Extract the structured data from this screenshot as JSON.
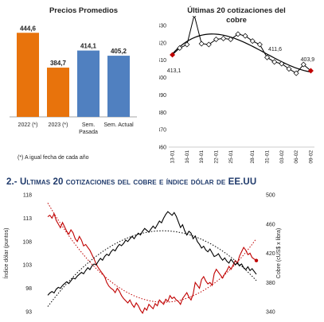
{
  "bar_title": "Precios Promedios",
  "bar_note": "(*) A igual fecha de cada año",
  "line_title": "Últimas 20 cotizaciones del cobre",
  "section_title": "2.- Ultimas 20 cotizaciones del cobre e índice dólar de EE.UU",
  "colors": {
    "orange": "#e8730c",
    "blue": "#5080c0",
    "red": "#c00000",
    "black": "#000000",
    "title_blue": "#1f3a6b"
  },
  "chart_data": [
    {
      "type": "bar",
      "title": "Precios Promedios",
      "categories": [
        "2022 (*)",
        "2023 (*)",
        "Sem. Pasada",
        "Sem. Actual"
      ],
      "values": [
        444.6,
        384.7,
        414.1,
        405.2
      ],
      "value_labels": [
        "444,6",
        "384,7",
        "414,1",
        "405,2"
      ],
      "colors": [
        "#e8730c",
        "#e8730c",
        "#5080c0",
        "#5080c0"
      ],
      "ylim": [
        300,
        460
      ]
    },
    {
      "type": "line",
      "title": "Últimas 20 cotizaciones del cobre",
      "x": [
        "13-01",
        "16-01",
        "17-01",
        "18-01",
        "19-01",
        "20-01",
        "23-01",
        "24-01",
        "25-01",
        "26-01",
        "27-01",
        "30-01",
        "31-01",
        "01-02",
        "02-02",
        "03-02",
        "06-02",
        "07-02",
        "08-02",
        "09-02"
      ],
      "x_tick_labels": [
        "13-01",
        "16-01",
        "19-01",
        "22-01",
        "25-01",
        "28-01",
        "31-01",
        "03-02",
        "06-02",
        "09-02"
      ],
      "values": [
        413.1,
        417.0,
        419.0,
        436.0,
        419.5,
        419.0,
        422.0,
        422.5,
        422.0,
        425.0,
        424.0,
        421.0,
        419.0,
        411.6,
        409.0,
        408.0,
        405.0,
        402.5,
        407.5,
        403.9
      ],
      "ylim": [
        360,
        430
      ],
      "yticks": [
        360,
        370,
        380,
        390,
        400,
        410,
        420,
        430
      ],
      "annotations": [
        {
          "label": "413,1",
          "index": 0
        },
        {
          "label": "411,6",
          "index": 13
        },
        {
          "label": "403,9",
          "index": 19
        }
      ],
      "trendline": "polynomial",
      "series_color": "#000000",
      "highlight_color": "#c00000"
    },
    {
      "type": "line",
      "title": "2.- Ultimas 20 cotizaciones del cobre e índice dólar de EE.UU",
      "y_left_label": "Índice dólar (puntos)",
      "y_right_label": "Cobre (cUS$ x libra)",
      "y_left_lim": [
        93,
        118
      ],
      "y_left_ticks": [
        93,
        98,
        103,
        108,
        113,
        118
      ],
      "y_right_lim": [
        340,
        500
      ],
      "y_right_ticks": [
        340,
        380,
        420,
        460,
        500
      ],
      "series": [
        {
          "name": "Cobre",
          "axis": "right",
          "color": "#c00000",
          "values": [
            470,
            472,
            468,
            474,
            465,
            460,
            455,
            462,
            456,
            450,
            446,
            452,
            448,
            440,
            436,
            443,
            438,
            430,
            432,
            428,
            424,
            418,
            412,
            405,
            400,
            396,
            392,
            388,
            380,
            375,
            372,
            370,
            366,
            372,
            368,
            362,
            358,
            355,
            352,
            356,
            350,
            346,
            352,
            348,
            342,
            338,
            345,
            342,
            350,
            347,
            344,
            351,
            348,
            356,
            353,
            350,
            357,
            354,
            362,
            358,
            360,
            356,
            354,
            350,
            358,
            362,
            366,
            360,
            356,
            364,
            380,
            376,
            372,
            384,
            388,
            382,
            378,
            380,
            376,
            392,
            398,
            394,
            390,
            386,
            392,
            396,
            402,
            398,
            404,
            410,
            406,
            416,
            422,
            428,
            424,
            418,
            420,
            414,
            412,
            410
          ]
        },
        {
          "name": "Índice dólar",
          "axis": "left",
          "color": "#000000",
          "values": [
            96.5,
            97.0,
            97.3,
            97.0,
            97.8,
            98.2,
            98.0,
            98.6,
            99.0,
            99.4,
            99.0,
            99.6,
            100.2,
            100.0,
            100.6,
            101.0,
            101.4,
            101.1,
            101.8,
            102.4,
            102.0,
            102.8,
            103.2,
            103.0,
            103.8,
            104.4,
            104.0,
            104.8,
            105.3,
            105.0,
            105.8,
            106.3,
            106.0,
            106.8,
            107.4,
            107.1,
            107.6,
            108.3,
            108.0,
            108.6,
            109.1,
            108.6,
            109.3,
            109.8,
            109.4,
            110.2,
            110.8,
            110.4,
            110.0,
            110.7,
            111.3,
            110.8,
            111.6,
            112.4,
            112.0,
            113.0,
            113.8,
            114.4,
            114.0,
            113.6,
            114.2,
            113.4,
            112.2,
            111.0,
            111.6,
            110.3,
            109.4,
            110.2,
            109.8,
            108.6,
            109.2,
            108.0,
            107.4,
            106.6,
            107.0,
            106.2,
            105.8,
            106.4,
            105.6,
            104.8,
            105.0,
            105.4,
            104.6,
            104.0,
            104.5,
            103.8,
            103.4,
            104.2,
            103.6,
            103.0,
            103.4,
            102.8,
            103.2,
            102.4,
            102.0,
            102.6,
            101.8,
            102.2,
            101.6,
            101.0
          ]
        }
      ],
      "trendlines": "dotted polynomial"
    }
  ]
}
